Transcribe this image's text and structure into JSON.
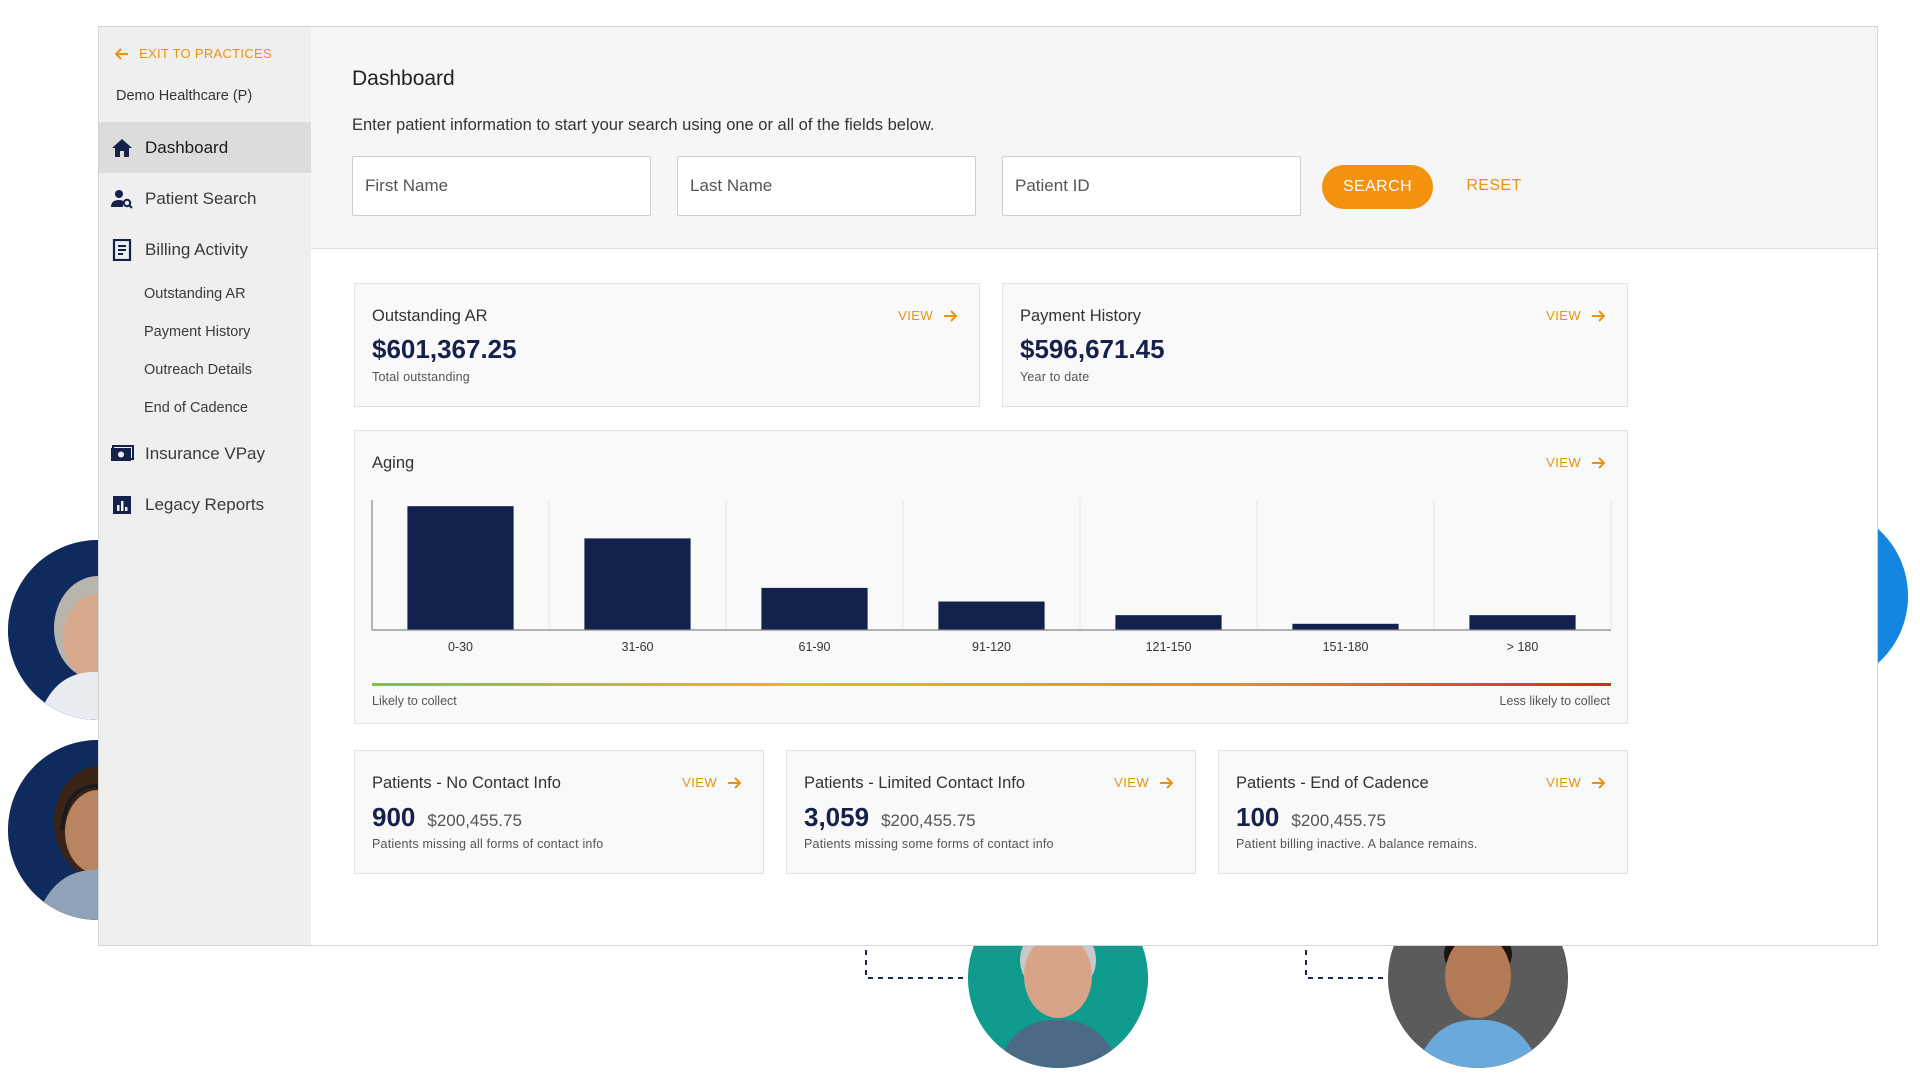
{
  "sidebar": {
    "exit_label": "EXIT TO PRACTICES",
    "practice_name": "Demo Healthcare (P)",
    "items": [
      {
        "label": "Dashboard",
        "icon": "home-icon"
      },
      {
        "label": "Patient Search",
        "icon": "person-search-icon"
      },
      {
        "label": "Billing Activity",
        "icon": "receipt-icon"
      },
      {
        "label": "Insurance VPay",
        "icon": "payment-icon"
      },
      {
        "label": "Legacy Reports",
        "icon": "bar-chart-icon"
      }
    ],
    "billing_subitems": [
      "Outstanding AR",
      "Payment History",
      "Outreach Details",
      "End of Cadence"
    ]
  },
  "search": {
    "title": "Dashboard",
    "instructions": "Enter patient information to start your search using one or all of the fields below.",
    "first_name_placeholder": "First Name",
    "last_name_placeholder": "Last Name",
    "patient_id_placeholder": "Patient ID",
    "search_label": "SEARCH",
    "reset_label": "RESET"
  },
  "view_label": "VIEW",
  "outstanding_ar": {
    "title": "Outstanding AR",
    "amount": "$601,367.25",
    "caption": "Total outstanding"
  },
  "payment_history": {
    "title": "Payment History",
    "amount": "$596,671.45",
    "caption": "Year to date"
  },
  "aging": {
    "title": "Aging",
    "likely_label": "Likely to collect",
    "less_likely_label": "Less likely to collect"
  },
  "chart_data": {
    "type": "bar",
    "title": "Aging",
    "categories": [
      "0-30",
      "31-60",
      "61-90",
      "91-120",
      "121-150",
      "151-180",
      "> 180"
    ],
    "values": [
      100,
      74,
      34,
      23,
      12,
      5,
      12
    ],
    "ylim": [
      0,
      105
    ],
    "grid": "vertical",
    "bar_color": "#14214d"
  },
  "patients_cards": [
    {
      "title": "Patients - No Contact Info",
      "count": "900",
      "amount": "$200,455.75",
      "caption": "Patients missing all forms of contact info"
    },
    {
      "title": "Patients - Limited Contact Info",
      "count": "3,059",
      "amount": "$200,455.75",
      "caption": "Patients missing some forms of contact info"
    },
    {
      "title": "Patients - End of Cadence",
      "count": "100",
      "amount": "$200,455.75",
      "caption": "Patient billing inactive. A balance remains."
    }
  ],
  "colors": {
    "accent": "#f3920f",
    "navy": "#15214a",
    "sidebar_bg": "#efefef",
    "gradient": [
      "#7dc24b",
      "#f4b41a",
      "#f08a1c",
      "#d42a20"
    ]
  }
}
